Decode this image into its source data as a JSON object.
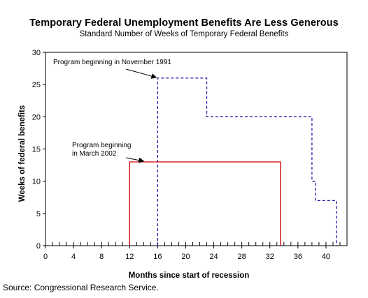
{
  "chart_data": {
    "type": "line",
    "title": "Temporary Federal Unemployment Benefits Are Less Generous",
    "subtitle": "Standard Number of Weeks of Temporary Federal Benefits",
    "xlabel": "Months since start of recession",
    "ylabel": "Weeks of federal benefits",
    "xlim": [
      0,
      43
    ],
    "ylim": [
      0,
      30
    ],
    "x_ticks": [
      0,
      4,
      8,
      12,
      16,
      20,
      24,
      28,
      32,
      36,
      40
    ],
    "y_ticks": [
      0,
      5,
      10,
      15,
      20,
      25,
      30
    ],
    "grid": false,
    "series": [
      {
        "name": "Program beginning in November 1991",
        "style": "dashed",
        "color": "#1a1aa6",
        "points": [
          [
            16,
            0
          ],
          [
            16,
            26
          ],
          [
            23,
            26
          ],
          [
            23,
            20
          ],
          [
            38,
            20
          ],
          [
            38,
            10
          ],
          [
            38.5,
            10
          ],
          [
            38.5,
            7
          ],
          [
            41.5,
            7
          ],
          [
            41.5,
            0
          ]
        ]
      },
      {
        "name": "Program beginning in March 2002",
        "style": "solid",
        "color": "#cc0000",
        "points": [
          [
            12,
            0
          ],
          [
            12,
            13
          ],
          [
            33.5,
            13
          ],
          [
            33.5,
            0
          ]
        ]
      }
    ],
    "annotations": [
      {
        "lines": [
          "Program beginning in November 1991"
        ],
        "arrow_to": [
          16,
          26
        ]
      },
      {
        "lines": [
          "Program beginning",
          "in March 2002"
        ],
        "arrow_to": [
          14,
          13
        ]
      }
    ]
  },
  "source": "Source: Congressional Research Service."
}
